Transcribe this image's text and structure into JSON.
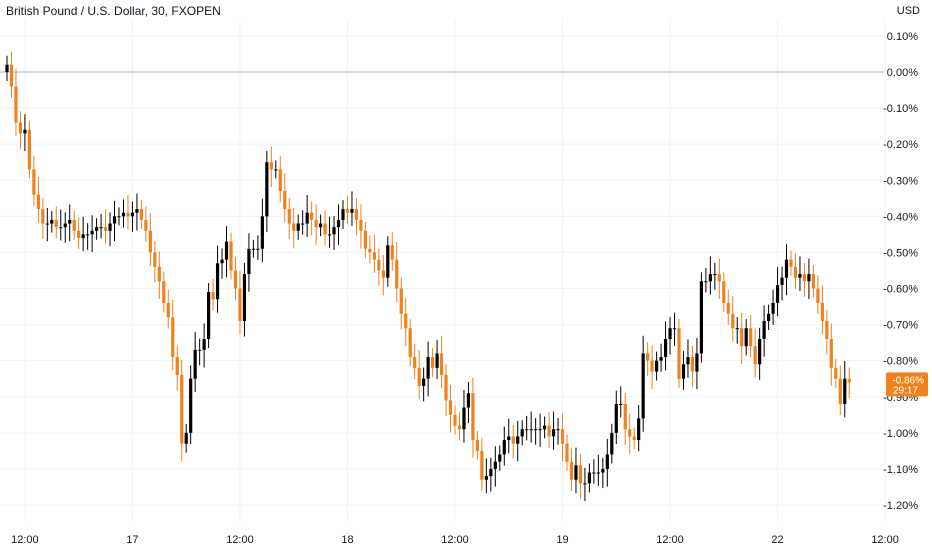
{
  "title": "British Pound / U.S. Dollar, 30, FXOPEN",
  "currency_label": "USD",
  "price_tag": {
    "value": "-0.86%",
    "countdown": "29:17",
    "color": "#f0821e"
  },
  "colors": {
    "up": "#000000",
    "down": "#f0821e",
    "grid": "#f0f3fa",
    "zero_line": "#b2b5be",
    "text": "#131722"
  },
  "chart_data": {
    "type": "candlestick",
    "title": "British Pound / U.S. Dollar, 30, FXOPEN",
    "ylabel": "USD",
    "y_unit": "percent change",
    "ylim": [
      -1.22,
      0.13
    ],
    "grid": true,
    "y_ticks": [
      0.1,
      0.0,
      -0.1,
      -0.2,
      -0.3,
      -0.4,
      -0.5,
      -0.6,
      -0.7,
      -0.8,
      -0.9,
      -1.0,
      -1.1,
      -1.2
    ],
    "y_tick_labels": [
      "0.10%",
      "0.00%",
      "-0.10%",
      "-0.20%",
      "-0.30%",
      "-0.40%",
      "-0.50%",
      "-0.60%",
      "-0.70%",
      "-0.80%",
      "-0.90%",
      "-1.00%",
      "-1.10%",
      "-1.20%"
    ],
    "x_ticks": [
      {
        "label": "12:00",
        "bar": 4
      },
      {
        "label": "17",
        "bar": 28
      },
      {
        "label": "12:00",
        "bar": 52
      },
      {
        "label": "18",
        "bar": 76
      },
      {
        "label": "12:00",
        "bar": 100
      },
      {
        "label": "19",
        "bar": 124
      },
      {
        "label": "12:00",
        "bar": 148
      },
      {
        "label": "22",
        "bar": 172
      },
      {
        "label": "12:00",
        "bar": 196
      }
    ],
    "reference_line": 0.0,
    "last_value": -0.86,
    "closes": [
      0.02,
      -0.04,
      -0.14,
      -0.17,
      -0.16,
      -0.27,
      -0.34,
      -0.38,
      -0.42,
      -0.42,
      -0.41,
      -0.43,
      -0.43,
      -0.42,
      -0.41,
      -0.44,
      -0.46,
      -0.45,
      -0.45,
      -0.44,
      -0.43,
      -0.43,
      -0.44,
      -0.42,
      -0.4,
      -0.4,
      -0.39,
      -0.4,
      -0.39,
      -0.38,
      -0.41,
      -0.44,
      -0.5,
      -0.54,
      -0.58,
      -0.64,
      -0.68,
      -0.79,
      -0.84,
      -1.03,
      -1.0,
      -0.85,
      -0.77,
      -0.77,
      -0.74,
      -0.61,
      -0.63,
      -0.53,
      -0.52,
      -0.47,
      -0.55,
      -0.6,
      -0.69,
      -0.56,
      -0.49,
      -0.49,
      -0.49,
      -0.4,
      -0.25,
      -0.27,
      -0.27,
      -0.33,
      -0.38,
      -0.42,
      -0.44,
      -0.42,
      -0.42,
      -0.39,
      -0.41,
      -0.43,
      -0.42,
      -0.45,
      -0.45,
      -0.43,
      -0.41,
      -0.38,
      -0.39,
      -0.38,
      -0.41,
      -0.44,
      -0.49,
      -0.5,
      -0.52,
      -0.55,
      -0.57,
      -0.48,
      -0.52,
      -0.6,
      -0.67,
      -0.71,
      -0.79,
      -0.82,
      -0.87,
      -0.85,
      -0.79,
      -0.82,
      -0.78,
      -0.84,
      -0.91,
      -0.95,
      -0.98,
      -0.99,
      -0.93,
      -0.89,
      -1.02,
      -1.05,
      -1.13,
      -1.12,
      -1.1,
      -1.08,
      -1.06,
      -1.02,
      -1.01,
      -1.03,
      -1.01,
      -0.99,
      -0.99,
      -0.99,
      -0.99,
      -0.99,
      -0.98,
      -1.01,
      -0.99,
      -0.99,
      -1.03,
      -1.08,
      -1.13,
      -1.09,
      -1.14,
      -1.14,
      -1.11,
      -1.11,
      -1.11,
      -1.1,
      -1.06,
      -1.0,
      -0.92,
      -0.92,
      -0.99,
      -1.01,
      -1.02,
      -0.96,
      -0.78,
      -0.8,
      -0.83,
      -0.8,
      -0.79,
      -0.74,
      -0.71,
      -0.71,
      -0.85,
      -0.81,
      -0.79,
      -0.83,
      -0.78,
      -0.58,
      -0.58,
      -0.56,
      -0.56,
      -0.58,
      -0.64,
      -0.67,
      -0.71,
      -0.71,
      -0.76,
      -0.71,
      -0.76,
      -0.81,
      -0.74,
      -0.69,
      -0.67,
      -0.64,
      -0.59,
      -0.57,
      -0.52,
      -0.54,
      -0.57,
      -0.56,
      -0.58,
      -0.56,
      -0.6,
      -0.64,
      -0.69,
      -0.74,
      -0.82,
      -0.85,
      -0.92,
      -0.85,
      -0.86
    ]
  }
}
